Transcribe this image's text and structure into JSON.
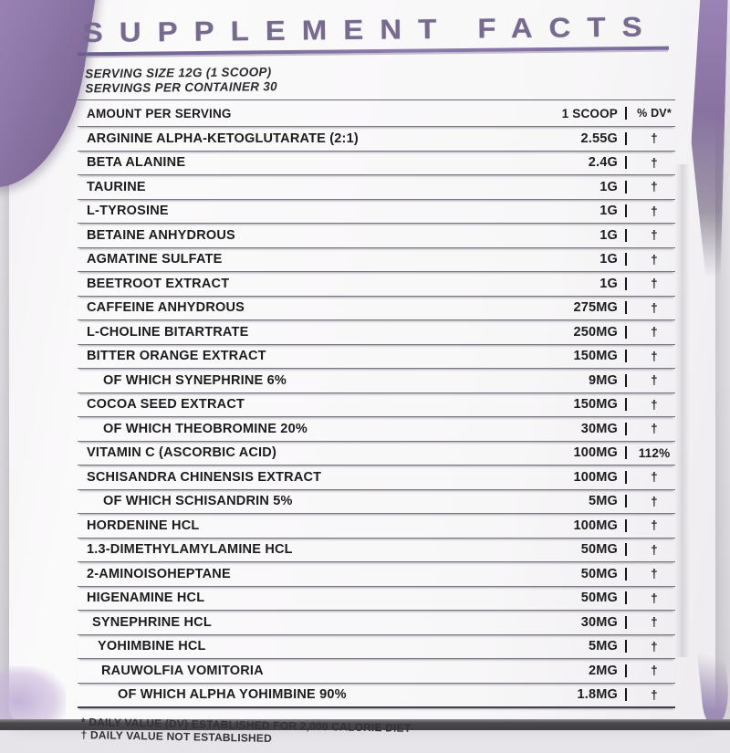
{
  "label": {
    "title": "SUPPLEMENT FACTS",
    "serving_size_line": "SERVING SIZE 12G (1 SCOOP)",
    "servings_per_container_line": "SERVINGS PER CONTAINER 30",
    "columns": {
      "amount_header": "AMOUNT PER SERVING",
      "scoop_header": "1 SCOOP",
      "dv_header": "% DV*"
    },
    "rows": [
      {
        "name": "ARGININE ALPHA-KETOGLUTARATE (2:1)",
        "amount": "2.55G",
        "dv": "†",
        "indent": false
      },
      {
        "name": "BETA ALANINE",
        "amount": "2.4G",
        "dv": "†",
        "indent": false
      },
      {
        "name": "TAURINE",
        "amount": "1G",
        "dv": "†",
        "indent": false
      },
      {
        "name": "L-TYROSINE",
        "amount": "1G",
        "dv": "†",
        "indent": false
      },
      {
        "name": "BETAINE ANHYDROUS",
        "amount": "1G",
        "dv": "†",
        "indent": false
      },
      {
        "name": "AGMATINE SULFATE",
        "amount": "1G",
        "dv": "†",
        "indent": false
      },
      {
        "name": "BEETROOT EXTRACT",
        "amount": "1G",
        "dv": "†",
        "indent": false
      },
      {
        "name": "CAFFEINE ANHYDROUS",
        "amount": "275MG",
        "dv": "†",
        "indent": false
      },
      {
        "name": "L-CHOLINE BITARTRATE",
        "amount": "250MG",
        "dv": "†",
        "indent": false
      },
      {
        "name": "BITTER ORANGE EXTRACT",
        "amount": "150MG",
        "dv": "†",
        "indent": false
      },
      {
        "name": "OF WHICH SYNEPHRINE 6%",
        "amount": "9MG",
        "dv": "†",
        "indent": true
      },
      {
        "name": "COCOA SEED EXTRACT",
        "amount": "150MG",
        "dv": "†",
        "indent": false
      },
      {
        "name": "OF WHICH THEOBROMINE 20%",
        "amount": "30MG",
        "dv": "†",
        "indent": true
      },
      {
        "name": "VITAMIN C (ASCORBIC ACID)",
        "amount": "100MG",
        "dv": "112%",
        "indent": false
      },
      {
        "name": "SCHISANDRA CHINENSIS EXTRACT",
        "amount": "100MG",
        "dv": "†",
        "indent": false
      },
      {
        "name": "OF WHICH SCHISANDRIN 5%",
        "amount": "5MG",
        "dv": "†",
        "indent": true
      },
      {
        "name": "HORDENINE HCL",
        "amount": "100MG",
        "dv": "†",
        "indent": false
      },
      {
        "name": "1.3-DIMETHYLAMYLAMINE HCL",
        "amount": "50MG",
        "dv": "†",
        "indent": false
      },
      {
        "name": "2-AMINOISOHEPTANE",
        "amount": "50MG",
        "dv": "†",
        "indent": false
      },
      {
        "name": "HIGENAMINE HCL",
        "amount": "50MG",
        "dv": "†",
        "indent": false
      },
      {
        "name": "SYNEPHRINE HCL",
        "amount": "30MG",
        "dv": "†",
        "indent": false
      },
      {
        "name": "YOHIMBINE HCL",
        "amount": "5MG",
        "dv": "†",
        "indent": false
      },
      {
        "name": "RAUWOLFIA VOMITORIA",
        "amount": "2MG",
        "dv": "†",
        "indent": false
      },
      {
        "name": "OF WHICH ALPHA YOHIMBINE 90%",
        "amount": "1.8MG",
        "dv": "†",
        "indent": true
      }
    ],
    "footnotes": [
      "* DAILY VALUE (DV) ESTABLISHED FOR 2,000 CALORIE DIET",
      "† DAILY VALUE NOT ESTABLISHED"
    ],
    "colors": {
      "accent_purple": "#8b74ad",
      "title_purple": "#766b8e",
      "ink": "#1c1c1f",
      "background_gray": "#dedce0"
    }
  }
}
